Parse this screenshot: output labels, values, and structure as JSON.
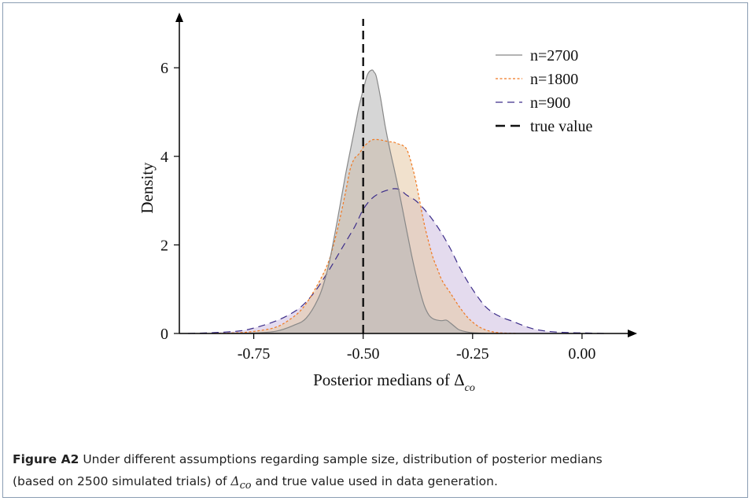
{
  "chart_data": {
    "type": "area",
    "xlabel_prefix": "Posterior medians of",
    "xlabel_symbol": "Δ",
    "xlabel_subscript": "co",
    "ylabel": "Density",
    "xlim": [
      -0.92,
      0.09
    ],
    "ylim": [
      0,
      6.5
    ],
    "x_ticks": [
      -0.75,
      -0.5,
      -0.25,
      0.0
    ],
    "x_tick_labels": [
      "-0.75",
      "-0.50",
      "-0.25",
      "0.00"
    ],
    "y_ticks": [
      0,
      2,
      4,
      6
    ],
    "y_tick_labels": [
      "0",
      "2",
      "4",
      "6"
    ],
    "grid": false,
    "legend_position": "top-right",
    "true_value": -0.5,
    "series": [
      {
        "name": "n=2700",
        "line_style": "solid",
        "line_color": "#888888",
        "fill_color": "#b5b5b5",
        "x": [
          -0.82,
          -0.75,
          -0.7,
          -0.66,
          -0.63,
          -0.6,
          -0.58,
          -0.56,
          -0.54,
          -0.52,
          -0.51,
          -0.5,
          -0.49,
          -0.48,
          -0.475,
          -0.47,
          -0.46,
          -0.45,
          -0.44,
          -0.43,
          -0.42,
          -0.41,
          -0.4,
          -0.39,
          -0.38,
          -0.37,
          -0.36,
          -0.35,
          -0.34,
          -0.33,
          -0.32,
          -0.31,
          -0.3,
          -0.29,
          -0.28,
          -0.26,
          -0.24,
          -0.22
        ],
        "values": [
          0.0,
          0.01,
          0.05,
          0.18,
          0.35,
          0.85,
          1.5,
          2.5,
          3.6,
          4.6,
          5.1,
          5.5,
          5.85,
          5.95,
          5.9,
          5.8,
          5.3,
          4.7,
          4.2,
          3.75,
          3.3,
          2.8,
          2.3,
          1.8,
          1.35,
          0.95,
          0.62,
          0.42,
          0.33,
          0.3,
          0.29,
          0.3,
          0.23,
          0.15,
          0.08,
          0.03,
          0.01,
          0.0
        ]
      },
      {
        "name": "n=1800",
        "line_style": "dotted",
        "line_color": "#f07820",
        "fill_color": "#e6c9a4",
        "x": [
          -0.84,
          -0.78,
          -0.74,
          -0.7,
          -0.67,
          -0.64,
          -0.61,
          -0.58,
          -0.56,
          -0.54,
          -0.53,
          -0.52,
          -0.51,
          -0.5,
          -0.49,
          -0.48,
          -0.47,
          -0.46,
          -0.45,
          -0.44,
          -0.43,
          -0.42,
          -0.41,
          -0.4,
          -0.39,
          -0.38,
          -0.37,
          -0.36,
          -0.35,
          -0.34,
          -0.33,
          -0.32,
          -0.3,
          -0.28,
          -0.26,
          -0.24,
          -0.22,
          -0.2,
          -0.18,
          -0.15
        ],
        "values": [
          0.0,
          0.02,
          0.06,
          0.14,
          0.3,
          0.55,
          1.0,
          1.6,
          2.3,
          3.2,
          3.7,
          3.95,
          4.05,
          4.2,
          4.3,
          4.37,
          4.38,
          4.37,
          4.35,
          4.33,
          4.32,
          4.28,
          4.25,
          4.15,
          3.85,
          3.45,
          2.95,
          2.45,
          2.05,
          1.7,
          1.45,
          1.2,
          0.9,
          0.6,
          0.35,
          0.18,
          0.08,
          0.03,
          0.01,
          0.0
        ]
      },
      {
        "name": "n=900",
        "line_style": "dashed",
        "line_color": "#3d2e8a",
        "fill_color": "#cdbde0",
        "x": [
          -0.9,
          -0.84,
          -0.78,
          -0.74,
          -0.7,
          -0.67,
          -0.64,
          -0.61,
          -0.58,
          -0.55,
          -0.52,
          -0.5,
          -0.48,
          -0.46,
          -0.44,
          -0.43,
          -0.42,
          -0.41,
          -0.4,
          -0.38,
          -0.36,
          -0.34,
          -0.32,
          -0.3,
          -0.28,
          -0.26,
          -0.24,
          -0.22,
          -0.2,
          -0.18,
          -0.16,
          -0.14,
          -0.12,
          -0.1,
          -0.07,
          -0.03,
          0.01,
          0.05
        ],
        "values": [
          0.0,
          0.02,
          0.06,
          0.15,
          0.28,
          0.42,
          0.62,
          0.95,
          1.4,
          1.9,
          2.4,
          2.8,
          3.05,
          3.18,
          3.25,
          3.27,
          3.26,
          3.2,
          3.12,
          3.0,
          2.8,
          2.55,
          2.25,
          1.9,
          1.5,
          1.15,
          0.85,
          0.6,
          0.45,
          0.35,
          0.28,
          0.2,
          0.13,
          0.08,
          0.04,
          0.02,
          0.01,
          0.0
        ]
      }
    ],
    "legend": [
      {
        "label": "n=2700",
        "style": "solid"
      },
      {
        "label": "n=1800",
        "style": "dotted"
      },
      {
        "label": "n=900",
        "style": "dashed"
      },
      {
        "label": "true value",
        "style": "bold-dashed"
      }
    ]
  },
  "caption": {
    "label": "Figure A2",
    "text_before": "Under different assumptions regarding sample size, distribution of posterior medians",
    "text_line2_before": "(based on 2500 simulated trials) of",
    "symbol": "Δ",
    "subscript": "co",
    "text_after": "and true value used in data generation."
  }
}
